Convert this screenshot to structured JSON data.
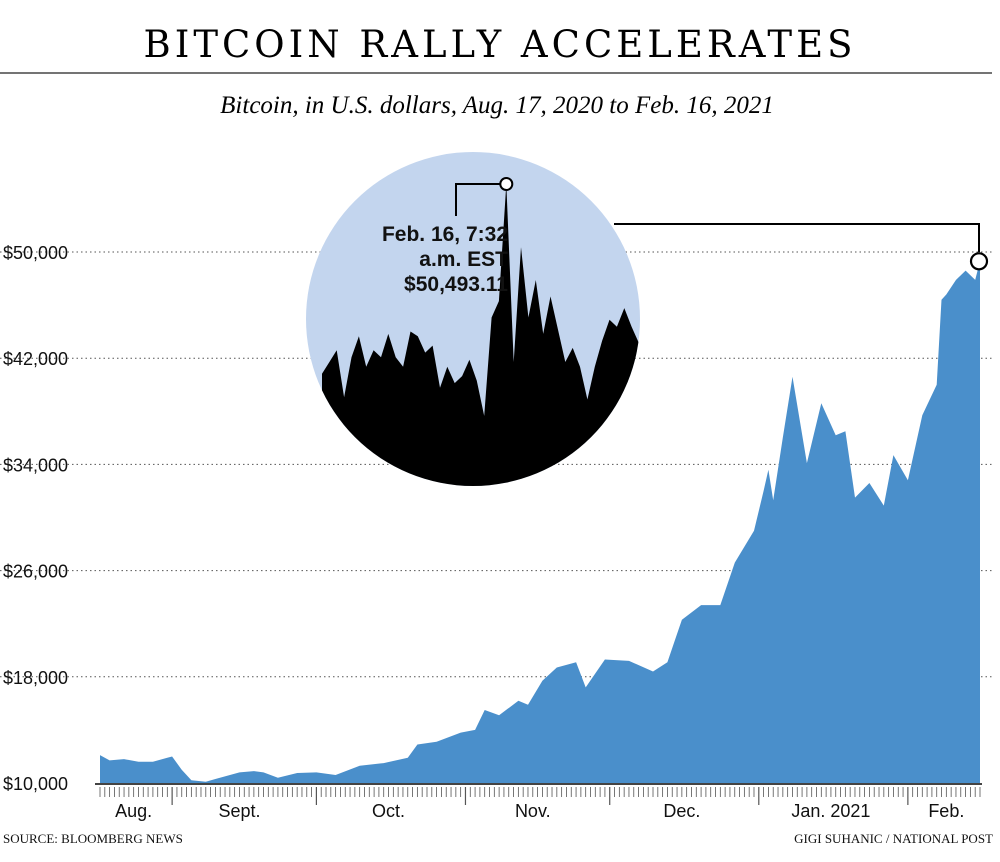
{
  "chart_data": {
    "type": "area",
    "title": "BITCOIN RALLY ACCELERATES",
    "subtitle": "Bitcoin, in U.S. dollars, Aug. 17, 2020 to Feb. 16, 2021",
    "ylim": [
      10000,
      50000
    ],
    "yticks": [
      "$10,000",
      "$18,000",
      "$26,000",
      "$34,000",
      "$42,000",
      "$50,000"
    ],
    "ytick_values": [
      10000,
      18000,
      26000,
      34000,
      42000,
      50000
    ],
    "xlim": [
      "2020-08-17",
      "2021-02-16"
    ],
    "month_labels": [
      {
        "label": "Aug.",
        "date": "2020-08-24"
      },
      {
        "label": "Sept.",
        "date": "2020-09-15"
      },
      {
        "label": "Oct.",
        "date": "2020-10-16"
      },
      {
        "label": "Nov.",
        "date": "2020-11-15"
      },
      {
        "label": "Dec.",
        "date": "2020-12-16"
      },
      {
        "label": "Jan. 2021",
        "date": "2021-01-16"
      },
      {
        "label": "Feb.",
        "date": "2021-02-09"
      }
    ],
    "grid": true,
    "color": "#4a8fcb",
    "series": [
      {
        "values": [
          [
            "2020-08-17",
            12100
          ],
          [
            "2020-08-19",
            11700
          ],
          [
            "2020-08-22",
            11800
          ],
          [
            "2020-08-25",
            11600
          ],
          [
            "2020-08-28",
            11600
          ],
          [
            "2020-08-31",
            11900
          ],
          [
            "2020-09-01",
            12000
          ],
          [
            "2020-09-03",
            11000
          ],
          [
            "2020-09-05",
            10200
          ],
          [
            "2020-09-08",
            10100
          ],
          [
            "2020-09-10",
            10300
          ],
          [
            "2020-09-15",
            10800
          ],
          [
            "2020-09-18",
            10900
          ],
          [
            "2020-09-20",
            10800
          ],
          [
            "2020-09-23",
            10400
          ],
          [
            "2020-09-27",
            10750
          ],
          [
            "2020-10-01",
            10800
          ],
          [
            "2020-10-05",
            10600
          ],
          [
            "2020-10-10",
            11300
          ],
          [
            "2020-10-15",
            11500
          ],
          [
            "2020-10-20",
            11900
          ],
          [
            "2020-10-22",
            12900
          ],
          [
            "2020-10-26",
            13100
          ],
          [
            "2020-10-31",
            13800
          ],
          [
            "2020-11-03",
            14000
          ],
          [
            "2020-11-05",
            15500
          ],
          [
            "2020-11-08",
            15100
          ],
          [
            "2020-11-12",
            16200
          ],
          [
            "2020-11-14",
            15900
          ],
          [
            "2020-11-17",
            17700
          ],
          [
            "2020-11-20",
            18700
          ],
          [
            "2020-11-24",
            19100
          ],
          [
            "2020-11-26",
            17200
          ],
          [
            "2020-11-30",
            19300
          ],
          [
            "2020-12-05",
            19200
          ],
          [
            "2020-12-10",
            18400
          ],
          [
            "2020-12-13",
            19100
          ],
          [
            "2020-12-16",
            22300
          ],
          [
            "2020-12-20",
            23400
          ],
          [
            "2020-12-24",
            23400
          ],
          [
            "2020-12-27",
            26600
          ],
          [
            "2020-12-31",
            29000
          ],
          [
            "2021-01-02",
            32000
          ],
          [
            "2021-01-03",
            33600
          ],
          [
            "2021-01-04",
            31300
          ],
          [
            "2021-01-06",
            36000
          ],
          [
            "2021-01-08",
            40600
          ],
          [
            "2021-01-11",
            34100
          ],
          [
            "2021-01-14",
            38600
          ],
          [
            "2021-01-17",
            36200
          ],
          [
            "2021-01-19",
            36500
          ],
          [
            "2021-01-21",
            31500
          ],
          [
            "2021-01-24",
            32600
          ],
          [
            "2021-01-27",
            30900
          ],
          [
            "2021-01-29",
            34700
          ],
          [
            "2021-02-01",
            32800
          ],
          [
            "2021-02-04",
            37700
          ],
          [
            "2021-02-07",
            40000
          ],
          [
            "2021-02-08",
            46400
          ],
          [
            "2021-02-09",
            46800
          ],
          [
            "2021-02-11",
            47900
          ],
          [
            "2021-02-13",
            48600
          ],
          [
            "2021-02-15",
            47900
          ],
          [
            "2021-02-16",
            49300
          ]
        ]
      }
    ],
    "inset": {
      "fill": "#c3d5ee",
      "area_color": "#000000",
      "values": [
        42400,
        42900,
        43400,
        41400,
        43100,
        44000,
        42700,
        43400,
        43100,
        44100,
        43100,
        42700,
        44200,
        44000,
        43300,
        43600,
        41800,
        42700,
        42000,
        42300,
        43000,
        42100,
        40600,
        44800,
        45500,
        50493,
        42900,
        47800,
        44800,
        46400,
        44100,
        45700,
        44300,
        42900,
        43500,
        42700,
        41300,
        42700,
        43800,
        44700,
        44400,
        45200,
        44400,
        43700
      ],
      "annotation": [
        "Feb. 16, 7:32",
        "a.m. EST",
        "$50,493.11"
      ]
    }
  },
  "footer": {
    "source": "SOURCE: BLOOMBERG NEWS",
    "credit": "GIGI SUHANIC / NATIONAL POST"
  }
}
